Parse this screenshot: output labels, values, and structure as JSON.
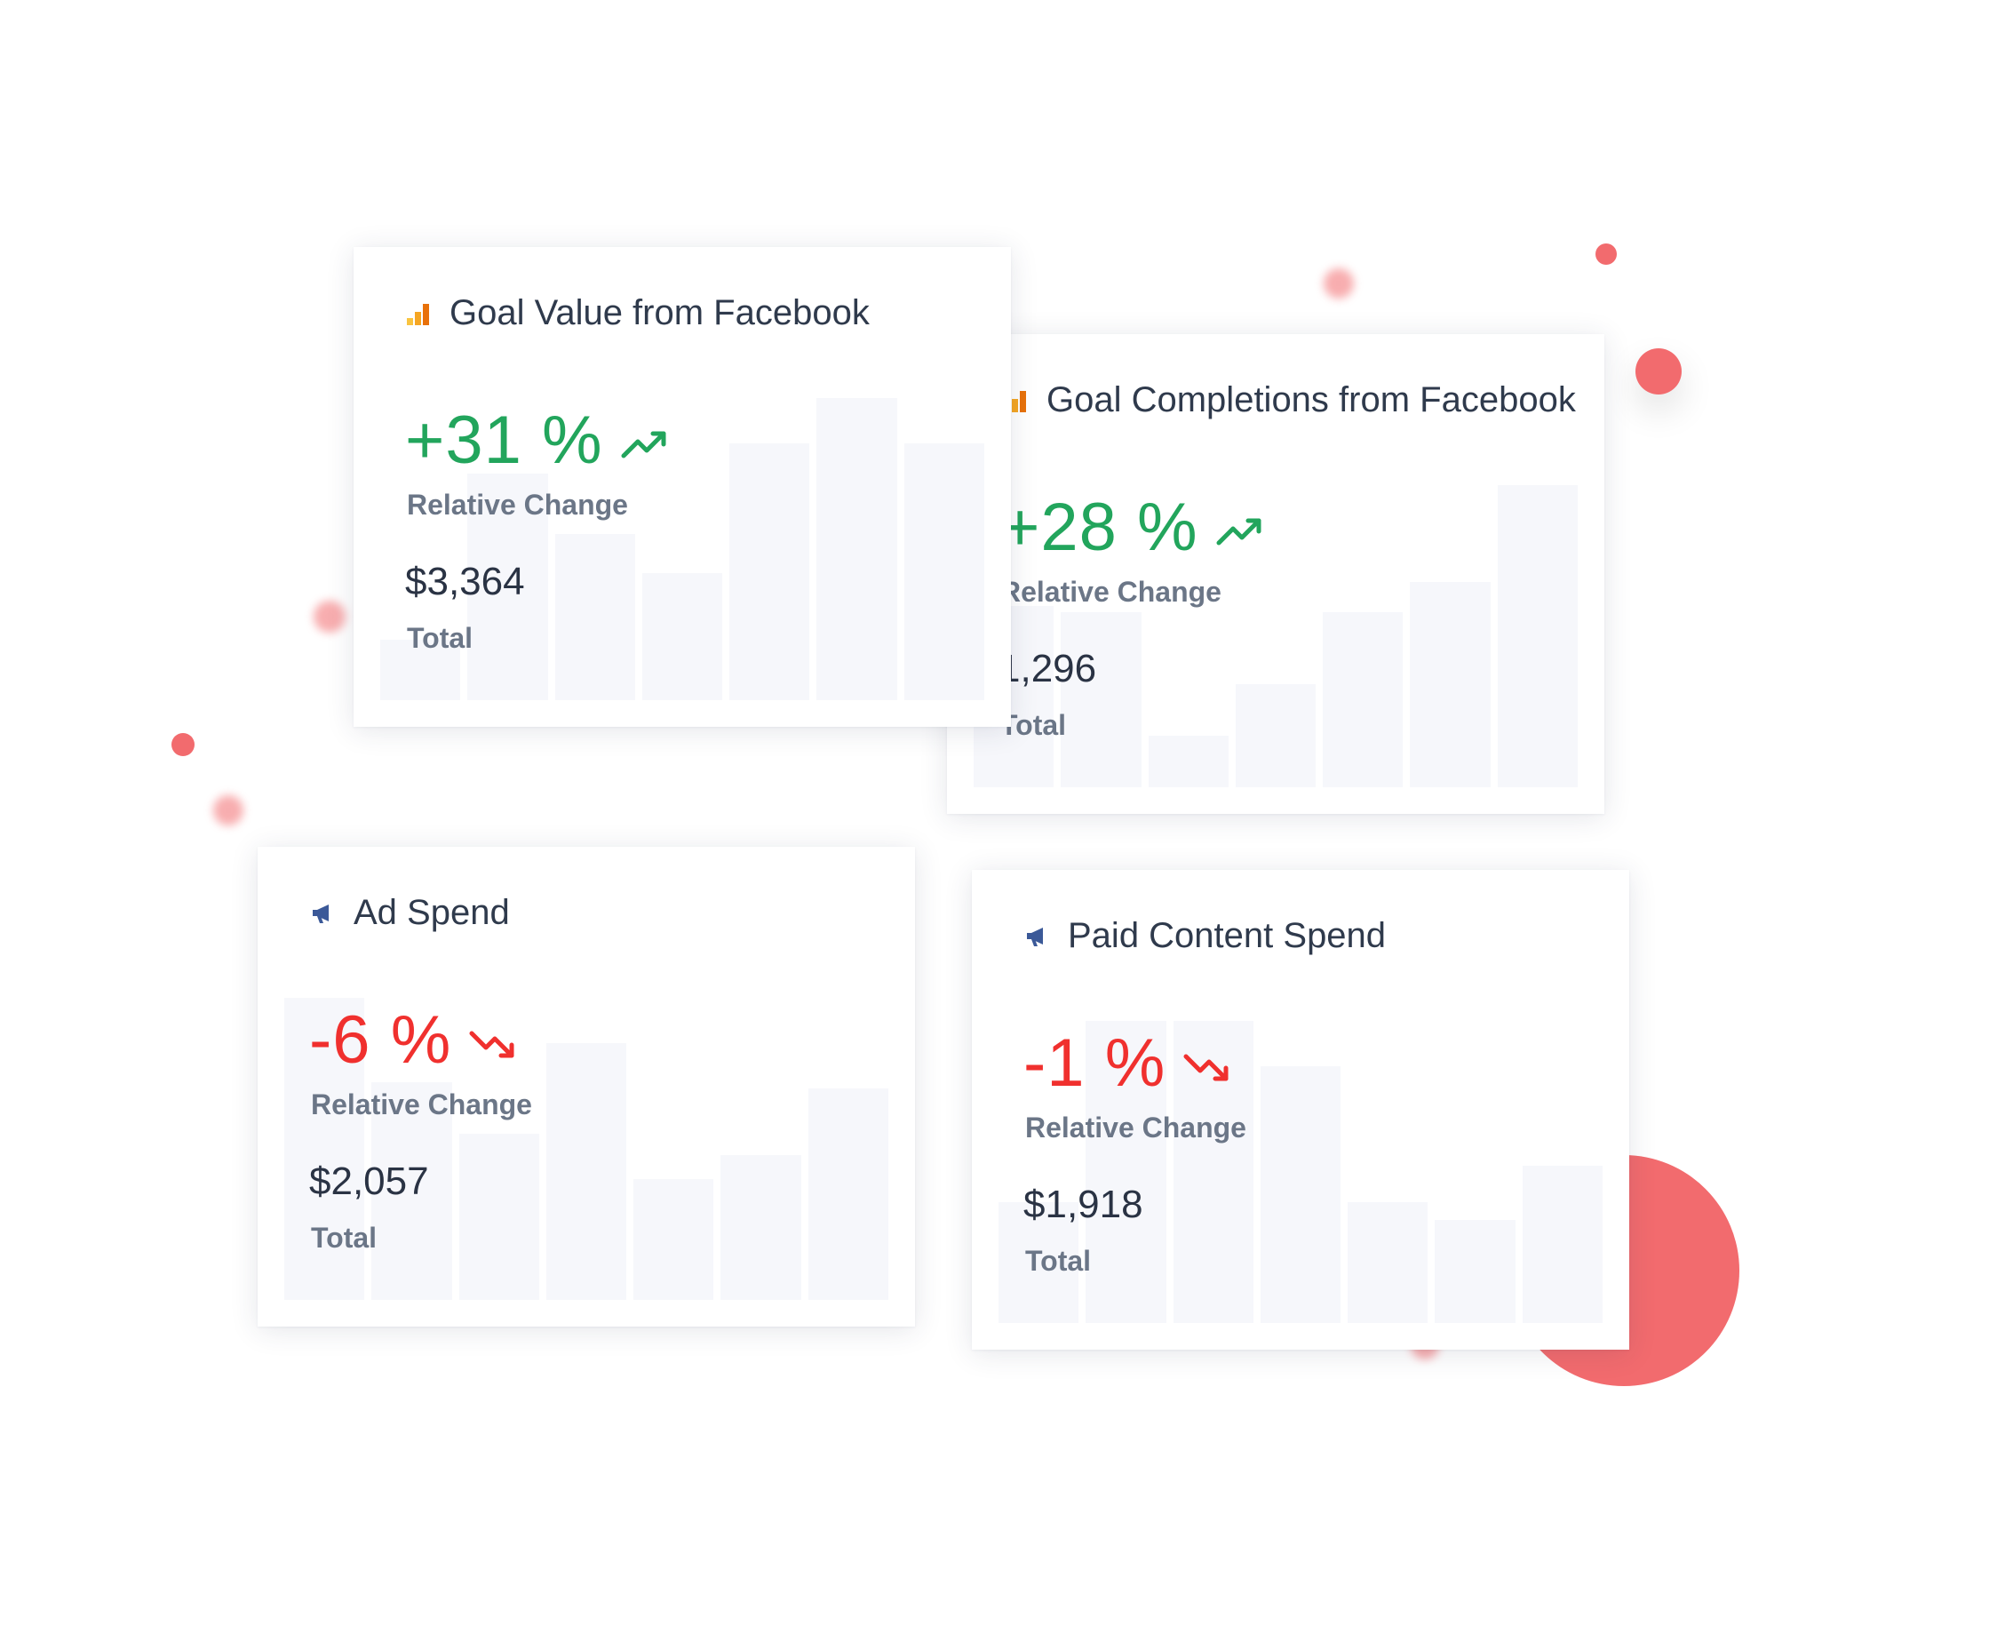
{
  "colors": {
    "positive": "#22a55c",
    "negative": "#f0302e",
    "accent_dots": "#f26b6e",
    "analytics_icon": "#f5a623",
    "megaphone_icon": "#3b5998",
    "bar_fill": "#f6f7fb"
  },
  "cards": [
    {
      "icon": "analytics-bar-icon",
      "title": "Goal Value from Facebook",
      "change": "+31 %",
      "trend": "trending-up-icon",
      "change_label": "Relative Change",
      "total": "$3,364",
      "total_label": "Total",
      "bars": [
        0.2,
        0.75,
        0.55,
        0.42,
        0.85,
        1.0,
        0.85
      ]
    },
    {
      "icon": "analytics-bar-icon",
      "title": "Goal Completions from Facebook",
      "change": "+28 %",
      "trend": "trending-up-icon",
      "change_label": "Relative Change",
      "total": "1,296",
      "total_label": "Total",
      "bars": [
        0.6,
        0.58,
        0.17,
        0.34,
        0.58,
        0.68,
        1.0
      ]
    },
    {
      "icon": "megaphone-icon",
      "title": "Ad Spend",
      "change": "-6 %",
      "trend": "trending-down-icon",
      "change_label": "Relative Change",
      "total": "$2,057",
      "total_label": "Total",
      "bars": [
        1.0,
        0.72,
        0.55,
        0.85,
        0.4,
        0.48,
        0.7
      ]
    },
    {
      "icon": "megaphone-icon",
      "title": "Paid Content Spend",
      "change": "-1 %",
      "trend": "trending-down-icon",
      "change_label": "Relative Change",
      "total": "$1,918",
      "total_label": "Total",
      "bars": [
        0.4,
        1.0,
        1.0,
        0.85,
        0.4,
        0.34,
        0.52
      ]
    }
  ]
}
